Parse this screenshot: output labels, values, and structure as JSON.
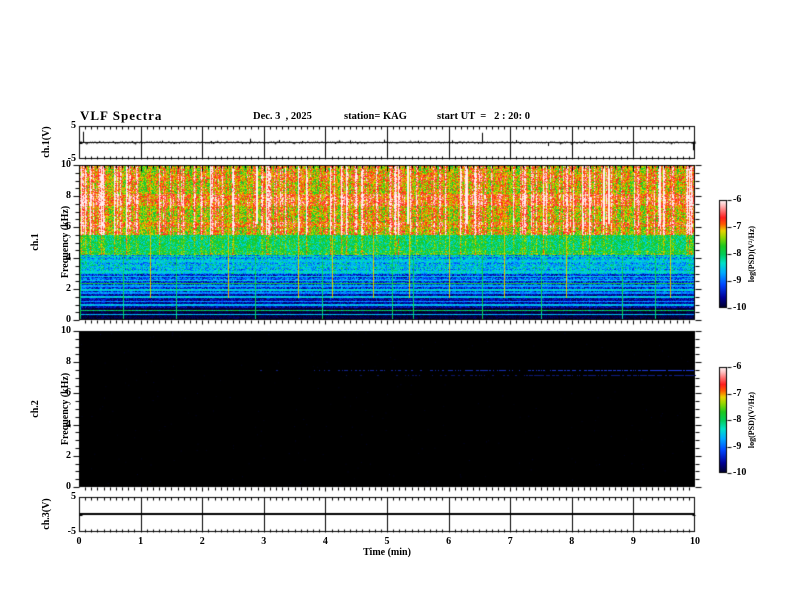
{
  "header": {
    "title": "VLF Spectra",
    "date_label": "Dec. 3  , 2025",
    "station_label": "station= KAG",
    "start_ut_label": "start UT  =   2 : 20: 0"
  },
  "axes": {
    "time": {
      "label": "Time (min)",
      "tick_labels": [
        "0",
        "1",
        "2",
        "3",
        "4",
        "5",
        "6",
        "7",
        "8",
        "9",
        "10"
      ],
      "min": 0,
      "max": 10
    },
    "ch1_wave": {
      "label": "ch.1(V)",
      "tick_labels": [
        "5",
        "-5"
      ],
      "tick_values": [
        5,
        -5
      ],
      "ylim": [
        -5,
        5
      ]
    },
    "ch1_spec": {
      "label_ch": "ch.1",
      "label_freq": "Frequency (kHz)",
      "tick_labels": [
        "10",
        "8",
        "6",
        "4",
        "2",
        "0"
      ],
      "tick_values": [
        10,
        8,
        6,
        4,
        2,
        0
      ],
      "ylim": [
        0,
        10
      ]
    },
    "ch2_spec": {
      "label_ch": "ch.2",
      "label_freq": "Frequency (kHz)",
      "tick_labels": [
        "10",
        "8",
        "6",
        "4",
        "2",
        "0"
      ],
      "tick_values": [
        10,
        8,
        6,
        4,
        2,
        0
      ],
      "ylim": [
        0,
        10
      ]
    },
    "ch3_wave": {
      "label": "ch.3(V)",
      "tick_labels": [
        "5",
        "-5"
      ],
      "tick_values": [
        5,
        -5
      ],
      "ylim": [
        -5,
        5
      ]
    }
  },
  "colorbars": [
    {
      "label": "log(PSD)(V²/Hz)",
      "tick_labels": [
        "-6",
        "-7",
        "-8",
        "-9",
        "-10"
      ],
      "tick_values": [
        -6,
        -7,
        -8,
        -9,
        -10
      ],
      "range": [
        -10,
        -6
      ]
    },
    {
      "label": "log(PSD)(V²/Hz)",
      "tick_labels": [
        "-6",
        "-7",
        "-8",
        "-9",
        "-10"
      ],
      "tick_values": [
        -6,
        -7,
        -8,
        -9,
        -10
      ],
      "range": [
        -10,
        -6
      ]
    }
  ],
  "colormap_stops": [
    [
      0.0,
      [
        0,
        0,
        32
      ]
    ],
    [
      0.1,
      [
        0,
        0,
        150
      ]
    ],
    [
      0.22,
      [
        0,
        70,
        255
      ]
    ],
    [
      0.33,
      [
        0,
        170,
        255
      ]
    ],
    [
      0.42,
      [
        0,
        225,
        200
      ]
    ],
    [
      0.5,
      [
        0,
        205,
        90
      ]
    ],
    [
      0.58,
      [
        30,
        200,
        30
      ]
    ],
    [
      0.66,
      [
        150,
        215,
        0
      ]
    ],
    [
      0.72,
      [
        235,
        210,
        0
      ]
    ],
    [
      0.78,
      [
        255,
        90,
        0
      ]
    ],
    [
      0.84,
      [
        255,
        30,
        30
      ]
    ],
    [
      0.9,
      [
        255,
        110,
        110
      ]
    ],
    [
      0.95,
      [
        255,
        185,
        185
      ]
    ],
    [
      1.0,
      [
        255,
        245,
        245
      ]
    ]
  ],
  "chart_data": [
    {
      "panel": "ch1_voltage",
      "type": "line",
      "ylabel": "ch.1(V)",
      "xlim": [
        0,
        10
      ],
      "ylim": [
        -5,
        5
      ],
      "baseline_v": 0,
      "noise_amplitude_v": 0.18,
      "spikes": [
        {
          "t": 0.07,
          "v": 3.4
        },
        {
          "t": 0.55,
          "v": 0.5
        },
        {
          "t": 1.35,
          "v": 0.7
        },
        {
          "t": 2.15,
          "v": 0.6
        },
        {
          "t": 2.78,
          "v": 1.3
        },
        {
          "t": 3.25,
          "v": 0.9
        },
        {
          "t": 3.62,
          "v": 0.6
        },
        {
          "t": 4.4,
          "v": 0.8
        },
        {
          "t": 4.95,
          "v": 1.0
        },
        {
          "t": 5.5,
          "v": 0.7
        },
        {
          "t": 6.05,
          "v": 0.8
        },
        {
          "t": 6.55,
          "v": 3.1
        },
        {
          "t": 7.1,
          "v": 0.9
        },
        {
          "t": 7.62,
          "v": -0.9
        },
        {
          "t": 8.2,
          "v": 0.7
        },
        {
          "t": 8.9,
          "v": 0.6
        },
        {
          "t": 9.3,
          "v": 0.5
        },
        {
          "t": 9.97,
          "v": -2.2
        }
      ]
    },
    {
      "panel": "ch1_spectrogram",
      "type": "heatmap",
      "ylabel": "ch.1 Frequency (kHz)",
      "xlim": [
        0,
        10
      ],
      "ylim": [
        0,
        10
      ],
      "psd_range": [
        -10,
        -6
      ],
      "bands": [
        {
          "f_min": 5.5,
          "f_max": 10,
          "psd": -7.55,
          "noise": 0.55,
          "streak_weight": 1.0
        },
        {
          "f_min": 4.2,
          "f_max": 5.5,
          "psd": -8.15,
          "noise": 0.5,
          "streak_weight": 0.4
        },
        {
          "f_min": 3.0,
          "f_max": 4.2,
          "psd": -8.85,
          "noise": 0.55,
          "streak_weight": 0.18
        },
        {
          "f_min": 1.8,
          "f_max": 3.0,
          "psd": -9.3,
          "noise": 0.45,
          "streak_weight": 0.1
        },
        {
          "f_min": 0.8,
          "f_max": 1.8,
          "psd": -9.6,
          "noise": 0.3,
          "streak_weight": 0.06
        },
        {
          "f_min": 0.0,
          "f_max": 0.8,
          "psd": -9.92,
          "noise": 0.15,
          "streak_weight": 0.04
        }
      ],
      "enhanced_bands": [
        {
          "f_min": 7.35,
          "f_max": 8.15,
          "boost": 0.5
        },
        {
          "f_min": 6.0,
          "f_max": 6.35,
          "boost": 0.35
        },
        {
          "f_min": 9.0,
          "f_max": 9.45,
          "boost": 0.25
        }
      ],
      "horizontal_lines": [
        {
          "f": 0.35,
          "psd": -8.6
        },
        {
          "f": 0.62,
          "psd": -8.0
        },
        {
          "f": 0.95,
          "psd": -8.6
        },
        {
          "f": 1.2,
          "psd": -8.8
        },
        {
          "f": 1.5,
          "psd": -8.5
        },
        {
          "f": 1.75,
          "psd": -8.8
        },
        {
          "f": 1.95,
          "psd": -8.4
        },
        {
          "f": 2.2,
          "psd": -8.7
        },
        {
          "f": 2.35,
          "psd": -7.8
        },
        {
          "f": 2.55,
          "psd": -8.5
        },
        {
          "f": 2.8,
          "psd": -8.7
        },
        {
          "f": 3.1,
          "psd": -8.5
        },
        {
          "f": 3.45,
          "psd": -8.7
        },
        {
          "f": 3.8,
          "psd": -8.55
        },
        {
          "f": 4.1,
          "psd": -8.5
        },
        {
          "f": 4.45,
          "psd": -8.3
        }
      ],
      "stripe_zone": {
        "f_min": 2.6,
        "f_max": 4.6,
        "spacing_khz": 0.18,
        "boost": 0.35
      },
      "vertical_green_lines_min": [
        0.02,
        0.72,
        1.58,
        2.85,
        3.95,
        5.08,
        5.42,
        6.55,
        7.5,
        8.82,
        9.35
      ],
      "vertical_red_lines_min": [
        1.15,
        2.42,
        3.55,
        4.1,
        4.78,
        5.35,
        6.0,
        6.9,
        7.9,
        9.6
      ],
      "white_columns_min": [
        2.88,
        5.32,
        6.28,
        8.5,
        8.58,
        9.42
      ]
    },
    {
      "panel": "ch2_spectrogram",
      "type": "heatmap",
      "ylabel": "ch.2 Frequency (kHz)",
      "xlim": [
        0,
        10
      ],
      "ylim": [
        0,
        10
      ],
      "psd_range": [
        -10,
        -6
      ],
      "background_psd": -10,
      "features": [
        {
          "type": "dashed_horizontal_line",
          "f_khz": 7.5,
          "t_start_min": 2.2,
          "color": [
            30,
            60,
            230
          ],
          "note": "faint blue line densifying toward 10 min"
        },
        {
          "type": "dashed_horizontal_line",
          "f_khz": 7.2,
          "t_start_min": 4.0,
          "color": [
            15,
            30,
            140
          ],
          "note": "fainter companion line"
        }
      ]
    },
    {
      "panel": "ch3_voltage",
      "type": "line",
      "ylabel": "ch.3(V)",
      "xlim": [
        0,
        10
      ],
      "ylim": [
        -5,
        5
      ],
      "flat_value_v": 0.5
    }
  ]
}
